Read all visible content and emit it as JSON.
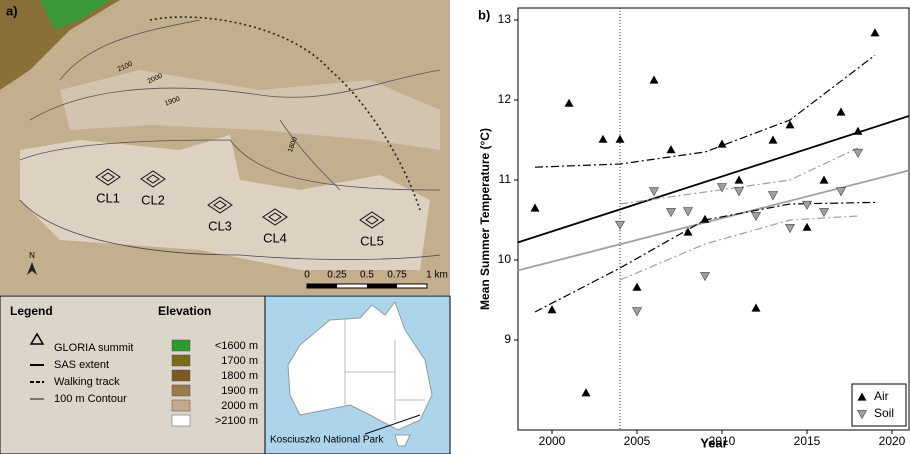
{
  "map": {
    "label": "a)",
    "north": "N",
    "sites": [
      "CL1",
      "CL2",
      "CL3",
      "CL4",
      "CL5"
    ],
    "contours": [
      "2100",
      "2000",
      "1900",
      "1800"
    ],
    "scale": [
      "0",
      "0.25",
      "0.5",
      "0.75",
      "1 km"
    ]
  },
  "legend": {
    "title": "Legend",
    "items": [
      "GLORIA summit",
      "SAS extent",
      "Walking track",
      "100 m Contour"
    ]
  },
  "elevation": {
    "title": "Elevation",
    "items": [
      {
        "label": "<1600 m",
        "color": "#2f9a2f"
      },
      {
        "label": "1700 m",
        "color": "#7a6a1e"
      },
      {
        "label": "1800 m",
        "color": "#7a5a22"
      },
      {
        "label": "1900 m",
        "color": "#9a7a4e"
      },
      {
        "label": "2000 m",
        "color": "#c4aa8a"
      },
      {
        "label": ">2100 m",
        "color": "#ffffff"
      }
    ]
  },
  "inset": {
    "label": "Kosciuszko National Park"
  },
  "chart_data": {
    "type": "scatter",
    "label": "b)",
    "xlabel": "Year",
    "ylabel": "Mean Summer Temperature (°C)",
    "xlim": [
      1998,
      2021
    ],
    "ylim": [
      7.875,
      13.15
    ],
    "xticks": [
      2000,
      2005,
      2010,
      2015,
      2020
    ],
    "yticks": [
      9,
      10,
      11,
      12,
      13
    ],
    "vline": 2004,
    "legend": "lower right",
    "series": [
      {
        "name": "Air",
        "color": "#000000",
        "marker": "triangle-up",
        "x": [
          1999,
          2000,
          2001,
          2002,
          2003,
          2004,
          2005,
          2006,
          2007,
          2008,
          2009,
          2010,
          2011,
          2012,
          2013,
          2014,
          2015,
          2016,
          2017,
          2018,
          2019
        ],
        "values": [
          10.65,
          9.38,
          11.96,
          8.34,
          11.51,
          11.51,
          9.66,
          12.25,
          11.38,
          10.35,
          10.51,
          11.45,
          11.0,
          9.4,
          11.5,
          11.69,
          10.41,
          11.0,
          11.85,
          11.61,
          12.84
        ]
      },
      {
        "name": "Soil",
        "color": "#a0a0a0",
        "marker": "triangle-down",
        "x": [
          2004,
          2005,
          2006,
          2007,
          2008,
          2009,
          2010,
          2011,
          2012,
          2013,
          2014,
          2015,
          2016,
          2017,
          2018
        ],
        "values": [
          10.44,
          9.36,
          10.86,
          10.6,
          10.61,
          9.8,
          10.91,
          10.86,
          10.55,
          10.81,
          10.4,
          10.69,
          10.6,
          10.86,
          11.34
        ]
      }
    ],
    "trend_lines": [
      {
        "color": "#000000",
        "style": "solid",
        "x": [
          1998,
          2021
        ],
        "values": [
          10.22,
          11.8
        ]
      },
      {
        "color": "#a0a0a0",
        "style": "solid",
        "x": [
          1998,
          2021
        ],
        "values": [
          9.87,
          11.12
        ]
      },
      {
        "color": "#000000",
        "style": "dashdot",
        "x": [
          1999,
          2004,
          2009,
          2014,
          2019
        ],
        "values": [
          11.16,
          11.2,
          11.35,
          11.75,
          12.56
        ]
      },
      {
        "color": "#000000",
        "style": "dashdot",
        "x": [
          1999,
          2004,
          2009,
          2014,
          2019
        ],
        "values": [
          9.35,
          9.9,
          10.5,
          10.7,
          10.72
        ]
      },
      {
        "color": "#a0a0a0",
        "style": "dashdot",
        "x": [
          2004,
          2009,
          2014,
          2018
        ],
        "values": [
          10.7,
          10.85,
          11.0,
          11.4
        ]
      },
      {
        "color": "#a0a0a0",
        "style": "dashdot",
        "x": [
          2004,
          2009,
          2014,
          2018
        ],
        "values": [
          9.75,
          10.2,
          10.5,
          10.55
        ]
      }
    ]
  }
}
